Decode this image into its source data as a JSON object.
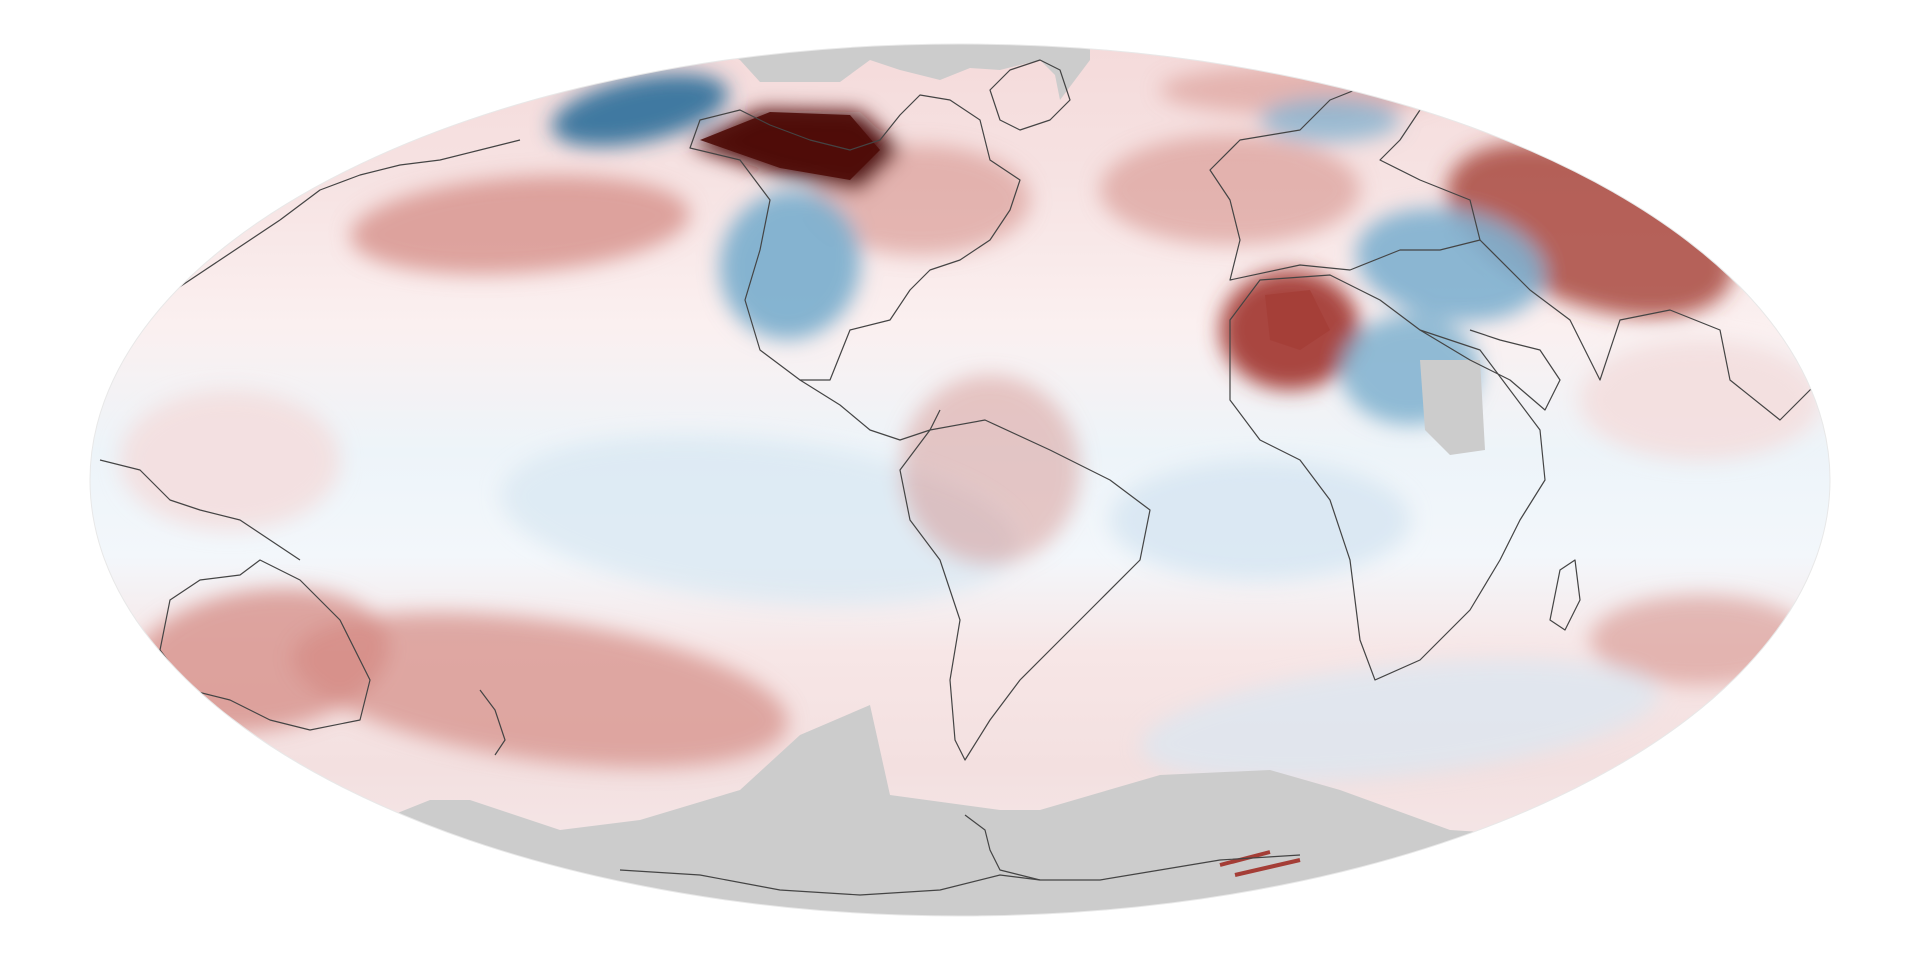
{
  "map": {
    "projection": "mollweide-like",
    "palette": {
      "no_data": "#cccccc",
      "coastline": "#444444",
      "neutral": "#ffffff",
      "cold_strong": "#2f6f9a",
      "cold_mid": "#7eb0cf",
      "cold_light": "#d8e7f2",
      "warm_light": "#f3dede",
      "warm_mid": "#d48b84",
      "warm_strong": "#a43d36",
      "warm_extreme": "#4f0c08"
    },
    "regions": [
      {
        "name": "arctic-north-cap",
        "category": "no_data"
      },
      {
        "name": "antarctica",
        "category": "no_data"
      },
      {
        "name": "alaska-warm-hotspot",
        "category": "warm_extreme"
      },
      {
        "name": "sahara-warm-hotspot",
        "category": "warm_strong"
      },
      {
        "name": "north-siberia-warm",
        "category": "warm_strong"
      },
      {
        "name": "north-pacific-warm",
        "category": "warm_mid"
      },
      {
        "name": "west-us-cold",
        "category": "cold_mid"
      },
      {
        "name": "bering-cold",
        "category": "cold_strong"
      },
      {
        "name": "central-asia-cold",
        "category": "cold_mid"
      },
      {
        "name": "arabia-cold",
        "category": "cold_mid"
      },
      {
        "name": "tropical-pacific-cold",
        "category": "cold_light"
      },
      {
        "name": "south-pacific-warm-band",
        "category": "warm_mid"
      },
      {
        "name": "southern-ocean-cold",
        "category": "cold_light"
      },
      {
        "name": "australia-warm",
        "category": "warm_mid"
      },
      {
        "name": "south-america-warm",
        "category": "warm_mid"
      }
    ]
  }
}
